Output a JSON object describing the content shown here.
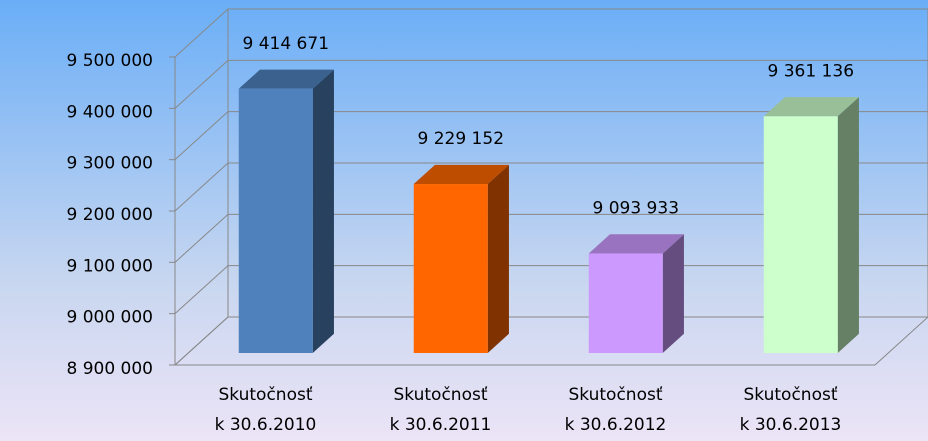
{
  "chart_data": {
    "type": "bar3d",
    "categories": [
      "Skutočnosť k 30.6.2010",
      "Skutočnosť k 30.6.2011",
      "Skutočnosť k 30.6.2012",
      "Skutočnosť k 30.6.2013"
    ],
    "values": [
      9414671,
      9229152,
      9093933,
      9361136
    ],
    "value_labels": [
      "9 414 671",
      "9 229 152",
      "9 093 933",
      "9 361 136"
    ],
    "colors": [
      "#4f81bd",
      "#ff6600",
      "#cc99ff",
      "#ccffcc"
    ],
    "ylim": [
      8900000,
      9500000
    ],
    "yticks": [
      {
        "value": 8900000,
        "label": "8 900 000"
      },
      {
        "value": 9000000,
        "label": "9 000 000"
      },
      {
        "value": 9100000,
        "label": "9 100 000"
      },
      {
        "value": 9200000,
        "label": "9 200 000"
      },
      {
        "value": 9300000,
        "label": "9 300 000"
      },
      {
        "value": 9400000,
        "label": "9 400 000"
      },
      {
        "value": 9500000,
        "label": "9 500 000"
      }
    ],
    "grid": true
  }
}
